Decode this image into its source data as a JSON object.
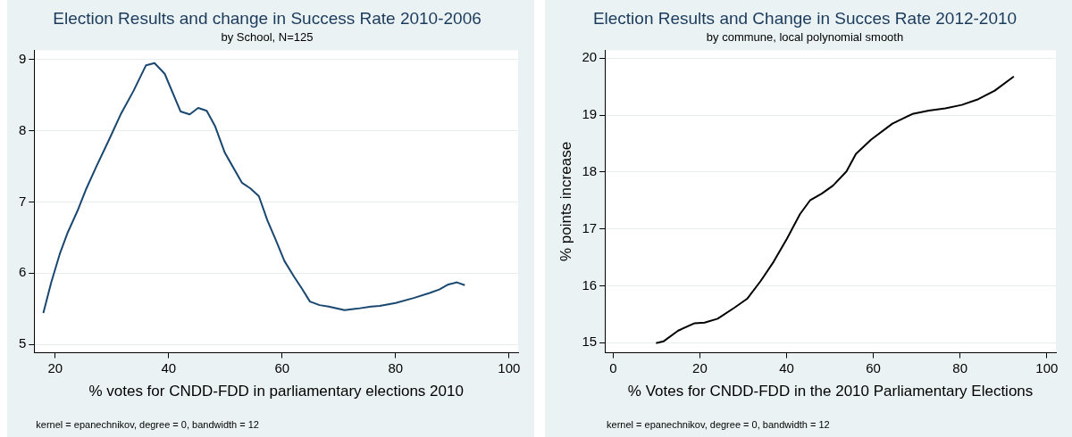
{
  "chart_data": [
    {
      "type": "line",
      "title": "Election Results and change in Success Rate 2010-2006",
      "subtitle": "by School, N=125",
      "xlabel": "% votes for CNDD-FDD in parliamentary elections 2010",
      "annotations": [
        "kernel = epanechnikov, degree = 0, bandwidth = 12"
      ],
      "x": [
        17.9,
        19.3,
        20.8,
        22.2,
        23.9,
        25.5,
        27.2,
        29.7,
        31.6,
        33.8,
        36.0,
        37.5,
        39.3,
        42.1,
        43.7,
        45.2,
        46.7,
        48.2,
        49.9,
        52.9,
        54.4,
        55.9,
        57.4,
        58.8,
        60.4,
        62.1,
        63.5,
        64.9,
        66.6,
        68.2,
        71.0,
        73.2,
        75.7,
        77.2,
        80.0,
        83.2,
        86.0,
        87.7,
        89.3,
        90.8,
        92.2
      ],
      "series": [
        {
          "color": "#1a476f",
          "values": [
            5.44,
            5.87,
            6.27,
            6.57,
            6.87,
            7.19,
            7.49,
            7.91,
            8.24,
            8.56,
            8.92,
            8.95,
            8.8,
            8.27,
            8.23,
            8.32,
            8.28,
            8.06,
            7.69,
            7.27,
            7.19,
            7.08,
            6.74,
            6.48,
            6.17,
            5.95,
            5.78,
            5.6,
            5.55,
            5.53,
            5.48,
            5.5,
            5.53,
            5.54,
            5.58,
            5.65,
            5.72,
            5.77,
            5.84,
            5.87,
            5.83
          ]
        }
      ],
      "xlim": [
        16.3,
        101.6
      ],
      "xticks": [
        20,
        40,
        60,
        80,
        100
      ],
      "ylim": [
        4.88,
        9.13
      ],
      "yticks": [
        5,
        6,
        7,
        8,
        9
      ],
      "grid": "y",
      "legend": false,
      "marker": "none",
      "line_style": "solid"
    },
    {
      "type": "line",
      "title": "Election Results and Change in Succes Rate 2012-2010",
      "subtitle": "by commune, local polynomial smooth",
      "xlabel": "% Votes for CNDD-FDD in the 2010 Parliamentary Elections",
      "ylabel": "% points increase",
      "annotations": [
        "kernel = epanechnikov, degree = 0, bandwidth = 12"
      ],
      "x": [
        9.9,
        11.6,
        15.0,
        18.8,
        21.1,
        24.1,
        27.9,
        30.9,
        34.0,
        37.0,
        40.1,
        43.1,
        45.4,
        48.1,
        50.7,
        53.8,
        56.0,
        59.5,
        64.4,
        69.0,
        72.8,
        76.6,
        80.4,
        84.2,
        88.0,
        92.4
      ],
      "series": [
        {
          "color": "#000000",
          "values": [
            14.99,
            15.02,
            15.21,
            15.34,
            15.35,
            15.42,
            15.61,
            15.77,
            16.08,
            16.42,
            16.83,
            17.26,
            17.5,
            17.62,
            17.76,
            18.01,
            18.32,
            18.57,
            18.85,
            19.02,
            19.08,
            19.12,
            19.18,
            19.28,
            19.43,
            19.68
          ]
        }
      ],
      "xlim": [
        -1.9,
        102.1
      ],
      "xticks": [
        0,
        20,
        40,
        60,
        80,
        100
      ],
      "ylim": [
        14.82,
        20.14
      ],
      "yticks": [
        15,
        16,
        17,
        18,
        19,
        20
      ],
      "grid": "y",
      "legend": false,
      "marker": "none",
      "line_style": "solid"
    }
  ]
}
